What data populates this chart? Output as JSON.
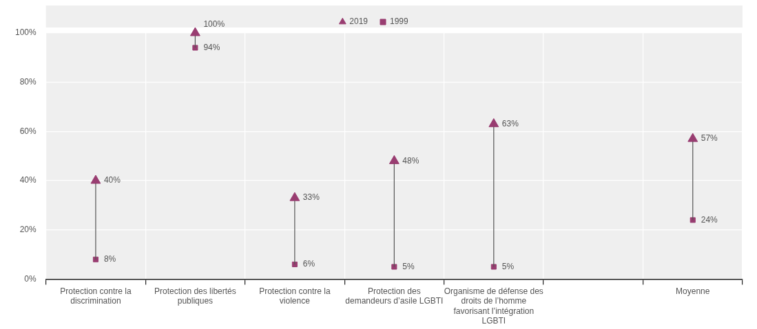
{
  "chart_data": {
    "type": "scatter",
    "categories": [
      "Protection contre la discrimination",
      "Protection des libertés publiques",
      "Protection contre la violence",
      "Protection des demandeurs d’asile LGBTI",
      "Organisme de défense des droits de l’homme favorisant l’intégration LGBTI",
      null,
      "Moyenne"
    ],
    "series": [
      {
        "name": "2019",
        "color": "#993d71",
        "marker": "triangle",
        "values": [
          40,
          100,
          33,
          48,
          63,
          null,
          57
        ],
        "value_labels": [
          "40%",
          "100%",
          "33%",
          "48%",
          "63%",
          null,
          "57%"
        ]
      },
      {
        "name": "1999",
        "color": "#993d71",
        "marker": "square",
        "values": [
          8,
          94,
          6,
          5,
          5,
          null,
          24
        ],
        "value_labels": [
          "8%",
          "94%",
          "6%",
          "5%",
          "5%",
          null,
          "24%"
        ]
      }
    ],
    "ylim": [
      0,
      100
    ],
    "yticks": [
      {
        "value": 0,
        "label": "0%"
      },
      {
        "value": 20,
        "label": "20%"
      },
      {
        "value": 40,
        "label": "40%"
      },
      {
        "value": 60,
        "label": "60%"
      },
      {
        "value": 80,
        "label": "80%"
      },
      {
        "value": 100,
        "label": "100%"
      }
    ],
    "grid": true,
    "legend": "top"
  }
}
